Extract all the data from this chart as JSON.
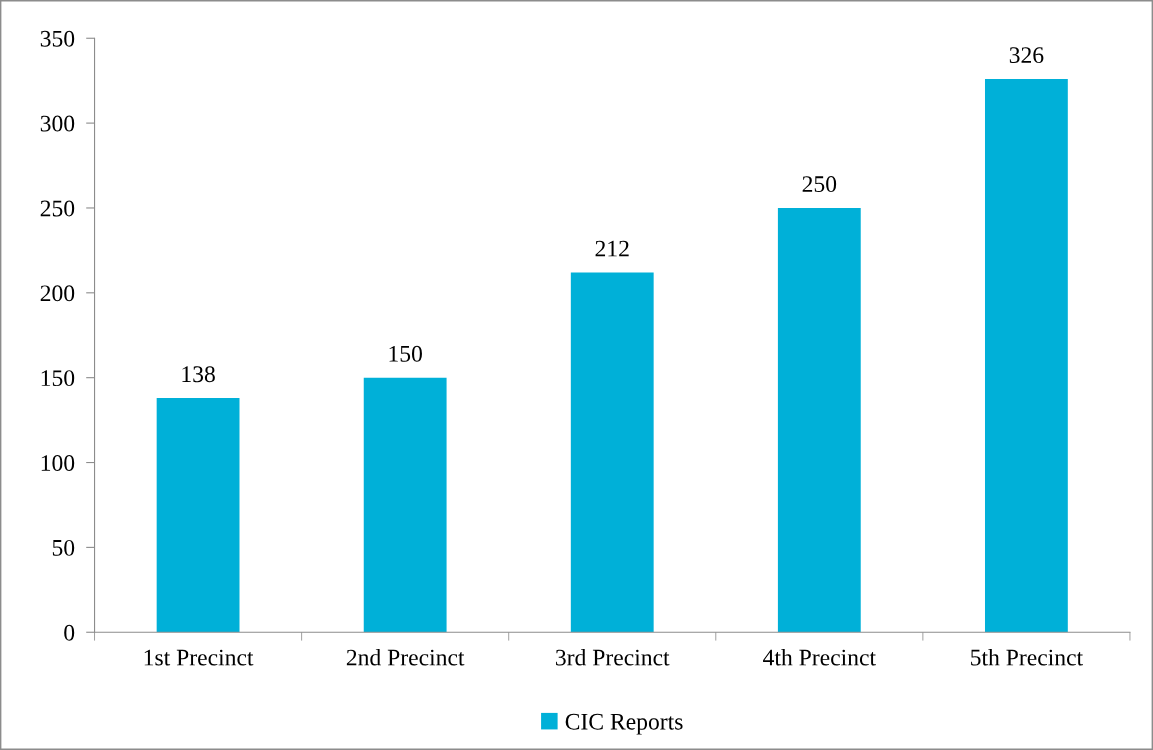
{
  "chart_data": {
    "type": "bar",
    "categories": [
      "1st Precinct",
      "2nd Precinct",
      "3rd Precinct",
      "4th Precinct",
      "5th Precinct"
    ],
    "series": [
      {
        "name": "CIC Reports",
        "color": "#00b0d8",
        "values": [
          138,
          150,
          212,
          250,
          326
        ]
      }
    ],
    "ylim": [
      0,
      350
    ],
    "yticks": [
      0,
      50,
      100,
      150,
      200,
      250,
      300,
      350
    ],
    "data_labels": true,
    "grid": false,
    "legend": "bottom"
  }
}
